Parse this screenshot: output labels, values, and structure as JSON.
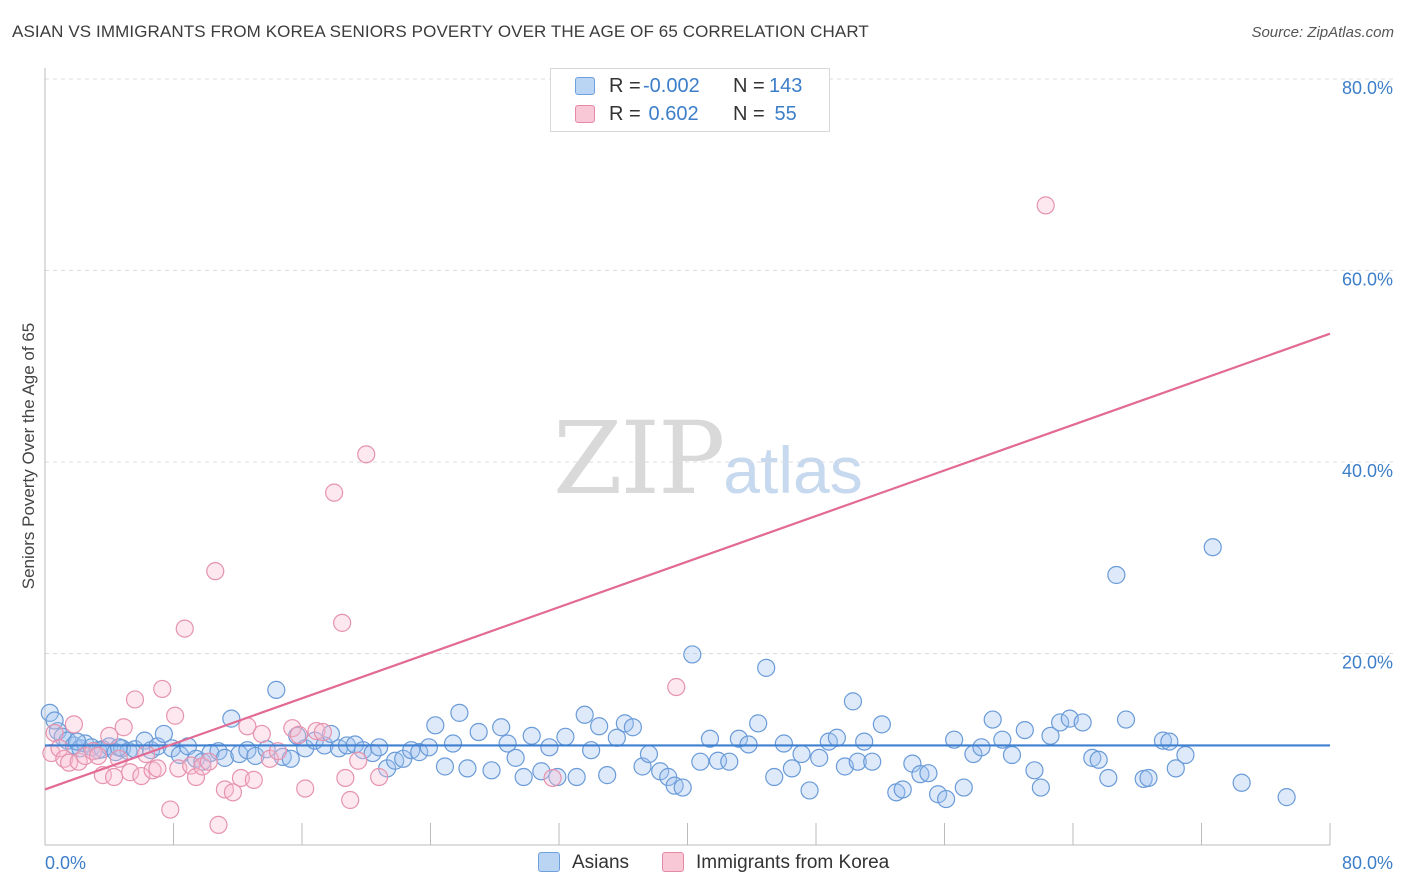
{
  "header": {
    "title": "ASIAN VS IMMIGRANTS FROM KOREA SENIORS POVERTY OVER THE AGE OF 65 CORRELATION CHART",
    "source": "Source: ZipAtlas.com"
  },
  "watermark": {
    "zip": "ZIP",
    "atlas": "atlas"
  },
  "legend": {
    "rows": [
      {
        "r_label": "R = ",
        "r_value": "-0.002",
        "n_label": "N = ",
        "n_value": "143",
        "color": "#6fa0dc",
        "fill": "#bad4f4"
      },
      {
        "r_label": "R = ",
        "r_value": " 0.602",
        "n_label": "N = ",
        "n_value": " 55",
        "color": "#e58aa6",
        "fill": "#f9c8d6"
      }
    ]
  },
  "bottom_legend": [
    {
      "label": "Asians",
      "color": "#6fa0dc",
      "fill": "#bad4f4"
    },
    {
      "label": "Immigrants from Korea",
      "color": "#e58aa6",
      "fill": "#f9c8d6"
    }
  ],
  "colors": {
    "blue_stroke": "#6a9bd8",
    "blue_fill": "rgba(160,196,240,0.35)",
    "blue_line": "#3f7fd0",
    "pink_stroke": "#e693ae",
    "pink_fill": "rgba(248,190,208,0.35)",
    "pink_line": "#e26a94",
    "axis_label": "#3d7ec9",
    "grid": "#dcdcdc"
  },
  "chart_data": {
    "type": "scatter",
    "title": "ASIAN VS IMMIGRANTS FROM KOREA SENIORS POVERTY OVER THE AGE OF 65 CORRELATION CHART",
    "xlabel": "",
    "ylabel": "Seniors Poverty Over the Age of 65",
    "xlim": [
      0,
      80
    ],
    "ylim": [
      0,
      80
    ],
    "x_tick_labels": [
      "0.0%",
      "80.0%"
    ],
    "y_tick_labels": [
      "20.0%",
      "40.0%",
      "60.0%",
      "80.0%"
    ],
    "y_ticks": [
      20,
      40,
      60,
      80
    ],
    "x_ticks": [
      0,
      8,
      16,
      24,
      32,
      40,
      48,
      56,
      64,
      72,
      80
    ],
    "series": [
      {
        "name": "Asians",
        "trend": {
          "x": [
            0,
            80
          ],
          "y": [
            10.4,
            10.4
          ]
        },
        "points": [
          [
            0.3,
            13.8
          ],
          [
            0.8,
            11.9
          ],
          [
            1.1,
            11.3
          ],
          [
            1.4,
            10.9
          ],
          [
            1.8,
            10.4
          ],
          [
            2.2,
            10.1
          ],
          [
            2.5,
            10.6
          ],
          [
            2.9,
            10.2
          ],
          [
            3.3,
            9.9
          ],
          [
            3.6,
            10.0
          ],
          [
            4.0,
            10.3
          ],
          [
            4.4,
            9.7
          ],
          [
            4.8,
            10.1
          ],
          [
            5.2,
            9.8
          ],
          [
            5.6,
            10.0
          ],
          [
            6.2,
            10.9
          ],
          [
            6.6,
            9.9
          ],
          [
            7.0,
            10.3
          ],
          [
            7.4,
            11.6
          ],
          [
            7.9,
            10.1
          ],
          [
            8.4,
            9.4
          ],
          [
            8.9,
            10.3
          ],
          [
            9.4,
            9.0
          ],
          [
            9.8,
            8.7
          ],
          [
            10.3,
            9.6
          ],
          [
            10.8,
            9.8
          ],
          [
            11.2,
            9.1
          ],
          [
            11.6,
            13.2
          ],
          [
            12.1,
            9.5
          ],
          [
            12.6,
            9.9
          ],
          [
            13.1,
            9.3
          ],
          [
            13.8,
            10.0
          ],
          [
            14.4,
            16.2
          ],
          [
            14.8,
            9.2
          ],
          [
            15.3,
            9.0
          ],
          [
            15.7,
            11.4
          ],
          [
            16.2,
            10.1
          ],
          [
            16.8,
            10.9
          ],
          [
            17.4,
            10.4
          ],
          [
            17.8,
            11.6
          ],
          [
            18.3,
            10.1
          ],
          [
            18.8,
            10.4
          ],
          [
            19.3,
            10.5
          ],
          [
            19.8,
            9.9
          ],
          [
            20.4,
            9.6
          ],
          [
            20.8,
            10.2
          ],
          [
            21.3,
            8.0
          ],
          [
            21.8,
            8.8
          ],
          [
            22.3,
            9.0
          ],
          [
            22.8,
            9.9
          ],
          [
            23.3,
            9.7
          ],
          [
            23.9,
            10.2
          ],
          [
            24.3,
            12.5
          ],
          [
            24.9,
            8.2
          ],
          [
            25.4,
            10.6
          ],
          [
            25.8,
            13.8
          ],
          [
            26.3,
            8.0
          ],
          [
            27.0,
            11.8
          ],
          [
            27.8,
            7.8
          ],
          [
            28.4,
            12.3
          ],
          [
            28.8,
            10.6
          ],
          [
            29.3,
            9.1
          ],
          [
            29.8,
            7.1
          ],
          [
            30.3,
            11.4
          ],
          [
            30.9,
            7.7
          ],
          [
            31.4,
            10.2
          ],
          [
            31.9,
            7.1
          ],
          [
            32.4,
            11.3
          ],
          [
            33.1,
            7.1
          ],
          [
            33.6,
            13.6
          ],
          [
            34.0,
            9.9
          ],
          [
            34.5,
            12.4
          ],
          [
            35.0,
            7.3
          ],
          [
            35.6,
            11.2
          ],
          [
            36.1,
            12.7
          ],
          [
            36.6,
            12.3
          ],
          [
            37.2,
            8.2
          ],
          [
            37.6,
            9.5
          ],
          [
            38.3,
            7.7
          ],
          [
            38.8,
            7.1
          ],
          [
            39.2,
            6.2
          ],
          [
            39.7,
            6.0
          ],
          [
            40.3,
            19.9
          ],
          [
            40.8,
            8.7
          ],
          [
            41.4,
            11.1
          ],
          [
            41.9,
            8.8
          ],
          [
            42.6,
            8.7
          ],
          [
            43.2,
            11.1
          ],
          [
            43.8,
            10.5
          ],
          [
            44.4,
            12.7
          ],
          [
            44.9,
            18.5
          ],
          [
            45.4,
            7.1
          ],
          [
            46.0,
            10.6
          ],
          [
            46.5,
            8.0
          ],
          [
            47.1,
            9.5
          ],
          [
            47.6,
            5.7
          ],
          [
            48.2,
            9.1
          ],
          [
            48.8,
            10.8
          ],
          [
            49.3,
            11.2
          ],
          [
            49.8,
            8.2
          ],
          [
            50.3,
            15.0
          ],
          [
            50.6,
            8.7
          ],
          [
            51.0,
            10.8
          ],
          [
            51.5,
            8.7
          ],
          [
            52.1,
            12.6
          ],
          [
            53.0,
            5.5
          ],
          [
            53.4,
            5.8
          ],
          [
            54.0,
            8.5
          ],
          [
            54.5,
            7.4
          ],
          [
            55.0,
            7.5
          ],
          [
            55.6,
            5.3
          ],
          [
            56.1,
            4.8
          ],
          [
            56.6,
            11.0
          ],
          [
            57.2,
            6.0
          ],
          [
            57.8,
            9.5
          ],
          [
            58.3,
            10.2
          ],
          [
            59.0,
            13.1
          ],
          [
            59.6,
            11.0
          ],
          [
            60.2,
            9.4
          ],
          [
            61.0,
            12.0
          ],
          [
            61.6,
            7.8
          ],
          [
            62.0,
            6.0
          ],
          [
            62.6,
            11.4
          ],
          [
            63.2,
            12.8
          ],
          [
            63.8,
            13.2
          ],
          [
            64.6,
            12.8
          ],
          [
            65.2,
            9.1
          ],
          [
            65.6,
            8.9
          ],
          [
            66.2,
            7.0
          ],
          [
            66.7,
            28.2
          ],
          [
            67.3,
            13.1
          ],
          [
            68.4,
            6.9
          ],
          [
            68.7,
            7.0
          ],
          [
            69.6,
            10.9
          ],
          [
            70.0,
            10.8
          ],
          [
            70.4,
            8.0
          ],
          [
            71.0,
            9.4
          ],
          [
            72.7,
            31.1
          ],
          [
            74.5,
            6.5
          ],
          [
            77.3,
            5.0
          ],
          [
            0.6,
            13.0
          ],
          [
            2.0,
            10.8
          ],
          [
            4.6,
            10.2
          ]
        ]
      },
      {
        "name": "Immigrants from Korea",
        "trend": {
          "x": [
            0,
            80
          ],
          "y": [
            5.8,
            53.4
          ]
        },
        "points": [
          [
            0.4,
            9.6
          ],
          [
            0.6,
            11.7
          ],
          [
            0.9,
            10.1
          ],
          [
            1.2,
            9.0
          ],
          [
            1.5,
            8.6
          ],
          [
            1.8,
            12.6
          ],
          [
            2.1,
            8.7
          ],
          [
            2.5,
            9.3
          ],
          [
            3.0,
            9.8
          ],
          [
            3.3,
            9.3
          ],
          [
            3.6,
            7.3
          ],
          [
            4.0,
            11.4
          ],
          [
            4.3,
            7.1
          ],
          [
            4.6,
            9.0
          ],
          [
            4.9,
            12.3
          ],
          [
            5.3,
            7.6
          ],
          [
            5.6,
            15.2
          ],
          [
            6.0,
            7.2
          ],
          [
            6.3,
            9.5
          ],
          [
            6.7,
            7.8
          ],
          [
            7.0,
            8.0
          ],
          [
            7.3,
            16.3
          ],
          [
            7.8,
            3.7
          ],
          [
            8.1,
            13.5
          ],
          [
            8.3,
            8.0
          ],
          [
            8.7,
            22.6
          ],
          [
            9.1,
            8.3
          ],
          [
            9.4,
            7.1
          ],
          [
            9.8,
            8.2
          ],
          [
            10.2,
            8.7
          ],
          [
            10.6,
            28.6
          ],
          [
            10.8,
            2.1
          ],
          [
            11.2,
            5.8
          ],
          [
            11.7,
            5.5
          ],
          [
            12.2,
            7.0
          ],
          [
            12.6,
            12.4
          ],
          [
            13.0,
            6.8
          ],
          [
            13.5,
            11.6
          ],
          [
            14.0,
            9.0
          ],
          [
            14.5,
            9.8
          ],
          [
            15.4,
            12.2
          ],
          [
            15.8,
            11.5
          ],
          [
            16.2,
            5.9
          ],
          [
            16.9,
            11.9
          ],
          [
            17.3,
            11.8
          ],
          [
            18.0,
            36.8
          ],
          [
            18.5,
            23.2
          ],
          [
            18.7,
            7.0
          ],
          [
            19.0,
            4.7
          ],
          [
            19.5,
            8.8
          ],
          [
            20.0,
            40.8
          ],
          [
            20.8,
            7.1
          ],
          [
            31.6,
            7.0
          ],
          [
            39.3,
            16.5
          ],
          [
            62.3,
            66.8
          ]
        ]
      }
    ]
  }
}
